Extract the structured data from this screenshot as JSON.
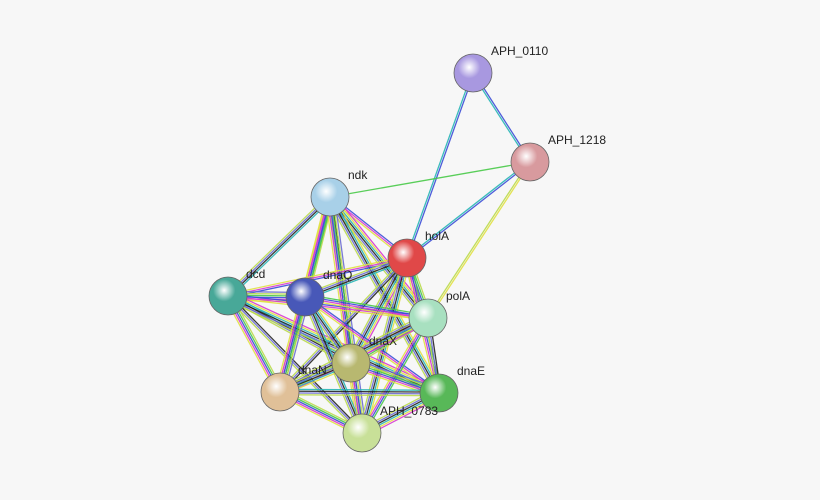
{
  "nodes": [
    {
      "label": "APH_0110"
    },
    {
      "label": "APH_1218"
    },
    {
      "label": "ndk"
    },
    {
      "label": "holA"
    },
    {
      "label": "dcd"
    },
    {
      "label": "dnaQ"
    },
    {
      "label": "polA"
    },
    {
      "label": "dnaX"
    },
    {
      "label": "dnaN"
    },
    {
      "label": "dnaE"
    },
    {
      "label": "APH_0783"
    }
  ]
}
